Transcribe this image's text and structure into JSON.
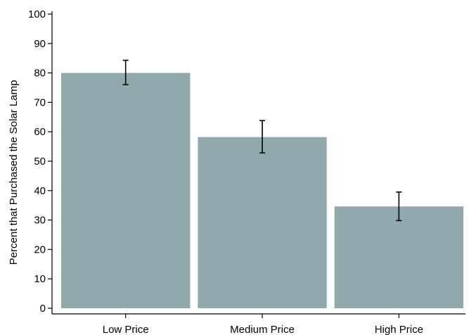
{
  "chart_data": {
    "type": "bar",
    "title": "",
    "xlabel": "",
    "ylabel": "Percent that Purchased the Solar Lamp",
    "categories": [
      "Low Price",
      "Medium Price",
      "High Price"
    ],
    "values": [
      80,
      58.2,
      34.6
    ],
    "error_low": [
      76,
      52.8,
      29.8
    ],
    "error_high": [
      84.3,
      63.8,
      39.5
    ],
    "ylim": [
      0,
      100
    ],
    "yticks": [
      0,
      10,
      20,
      30,
      40,
      50,
      60,
      70,
      80,
      90,
      100
    ],
    "yticklabels": [
      "0",
      "10",
      "20",
      "30",
      "40",
      "50",
      "60",
      "70",
      "80",
      "90",
      "100"
    ],
    "grid": false,
    "bar_color": "#8fa9ad",
    "error_color": "#000000"
  }
}
